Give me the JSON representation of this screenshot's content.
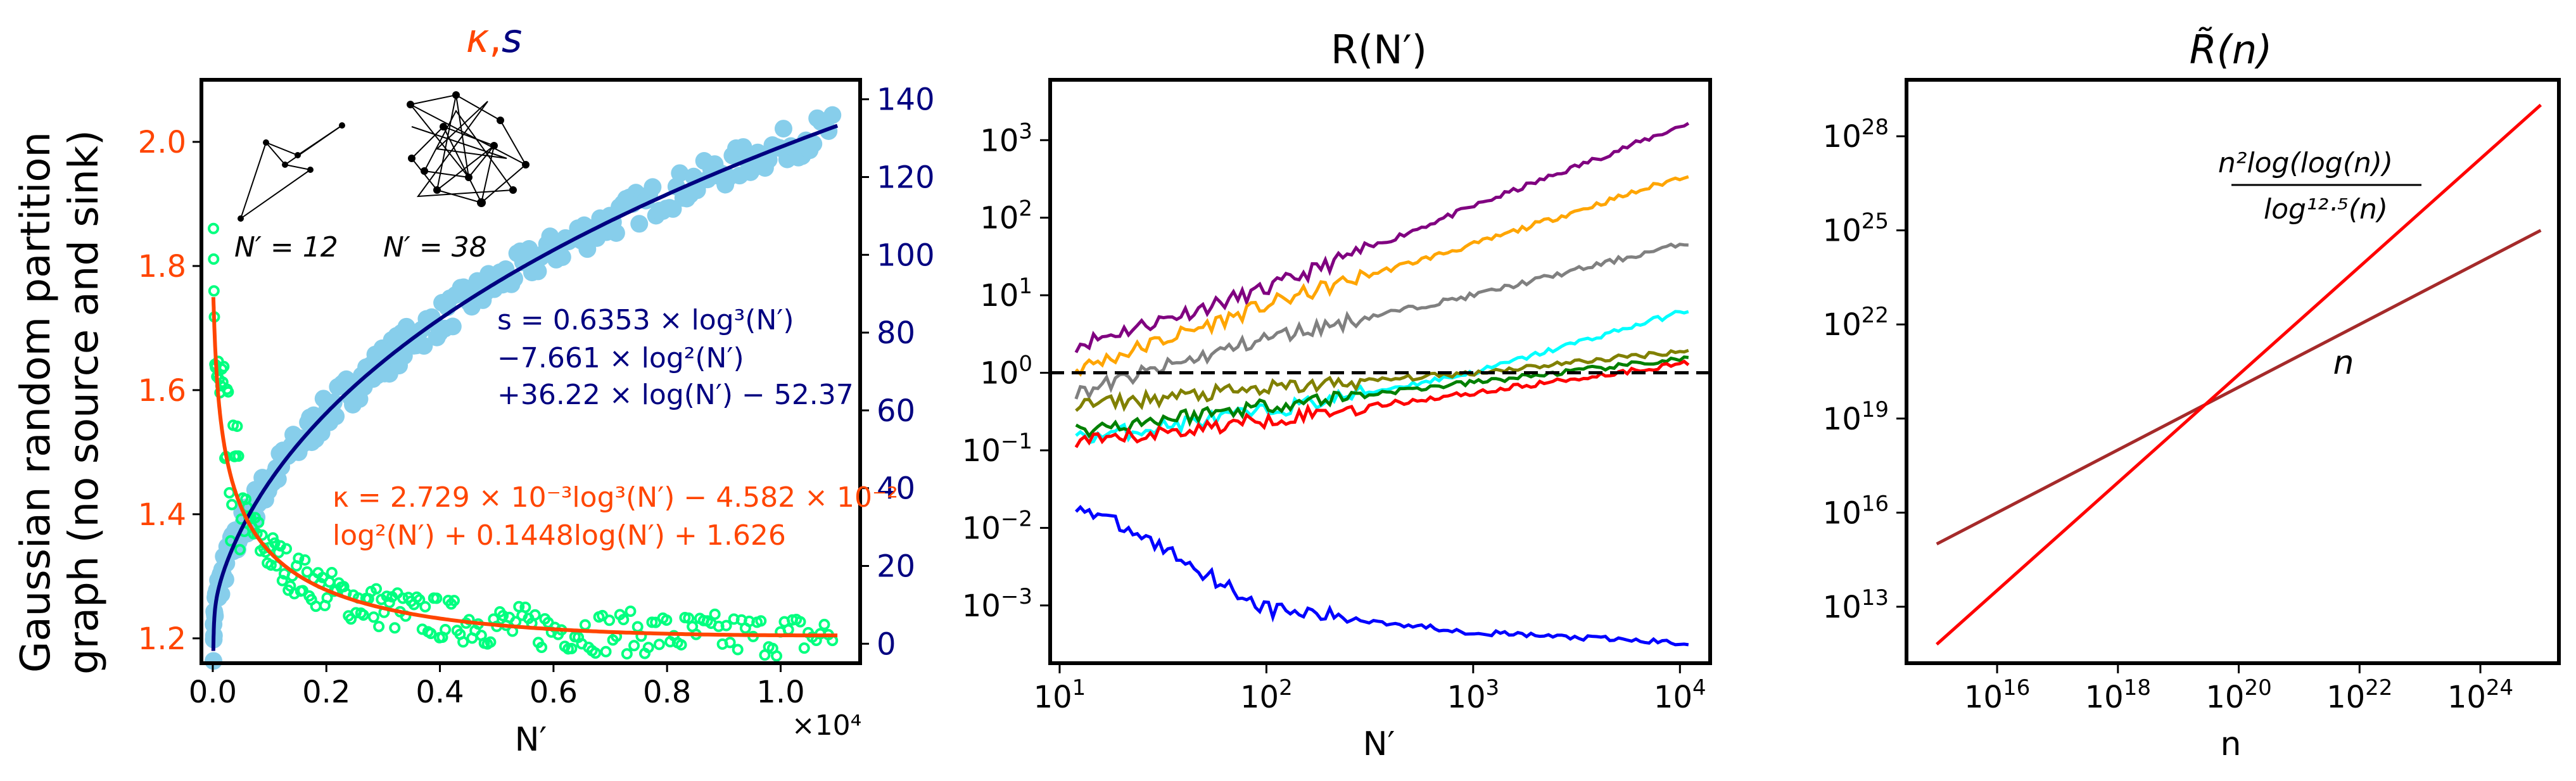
{
  "chart_data": [
    {
      "type": "scatter",
      "panel": "left",
      "title": {
        "kappa": "κ",
        "comma": ",",
        "s": "s"
      },
      "ylabel_lines": [
        "Gaussian random partition",
        "graph (no source and sink)"
      ],
      "xlabel": "N′",
      "x_multiplier": "×10⁴",
      "x_range": [
        -0.2,
        11.4
      ],
      "x_ticks": [
        "0.0",
        "0.2",
        "0.4",
        "0.6",
        "0.8",
        "1.0"
      ],
      "x_tick_values": [
        0,
        2000,
        4000,
        6000,
        8000,
        10000
      ],
      "left_axis": {
        "label": "κ",
        "range": [
          1.16,
          2.1
        ],
        "ticks": [
          "1.2",
          "1.4",
          "1.6",
          "1.8",
          "2.0"
        ],
        "tick_values": [
          1.2,
          1.4,
          1.6,
          1.8,
          2.0
        ]
      },
      "right_axis": {
        "label": "s",
        "range": [
          -5,
          145
        ],
        "ticks": [
          "0",
          "20",
          "40",
          "60",
          "80",
          "100",
          "120",
          "140"
        ],
        "tick_values": [
          0,
          20,
          40,
          60,
          80,
          100,
          120,
          140
        ]
      },
      "kappa_fit": {
        "a": 0.002729,
        "b": -0.04582,
        "c": 0.1448,
        "d": 1.626,
        "x_range": [
          10,
          11000
        ]
      },
      "s_fit": {
        "a": 0.6353,
        "b": -7.661,
        "c": 36.22,
        "d": -52.37,
        "x_range": [
          10,
          11000
        ]
      },
      "annotations": {
        "s_formula": [
          "s = 0.6353 × log³(N′)",
          "−7.661 × log²(N′)",
          "+36.22 × log(N′) − 52.37"
        ],
        "kappa_formula": [
          "κ = 2.729 × 10⁻³log³(N′) − 4.582 × 10⁻²",
          "log²(N′) + 0.1448log(N′) + 1.626"
        ],
        "inset_labels": [
          "N′ = 12",
          "N′ = 38"
        ]
      },
      "colors": {
        "kappa": "#ff4500",
        "s": "#000080",
        "s_points": "#87ceeb",
        "kappa_points": "#00ff7f",
        "left_ticks": "#ff4500",
        "right_ticks": "#000080"
      }
    },
    {
      "type": "line",
      "panel": "middle",
      "scale": "log-log",
      "title": "R(N′)",
      "xlabel": "N′",
      "x_range": [
        9,
        14000
      ],
      "y_range": [
        0.00018,
        6000
      ],
      "x_ticks": [
        {
          "base": "10",
          "exp": "1",
          "value": 10
        },
        {
          "base": "10",
          "exp": "2",
          "value": 100
        },
        {
          "base": "10",
          "exp": "3",
          "value": 1000
        },
        {
          "base": "10",
          "exp": "4",
          "value": 10000
        }
      ],
      "y_ticks": [
        {
          "base": "10",
          "exp": "−3",
          "value": 0.001
        },
        {
          "base": "10",
          "exp": "−2",
          "value": 0.01
        },
        {
          "base": "10",
          "exp": "−1",
          "value": 0.1
        },
        {
          "base": "10",
          "exp": "0",
          "value": 1
        },
        {
          "base": "10",
          "exp": "1",
          "value": 10
        },
        {
          "base": "10",
          "exp": "2",
          "value": 100
        },
        {
          "base": "10",
          "exp": "3",
          "value": 1000
        }
      ],
      "reference_line": {
        "y": 1.0,
        "style": "dashed",
        "color": "#000000"
      },
      "series": [
        {
          "name": "purple",
          "color": "#800080",
          "x": [
            12,
            100,
            1000,
            10000
          ],
          "y": [
            2.3,
            12,
            140,
            1500
          ]
        },
        {
          "name": "orange",
          "color": "#ffa500",
          "x": [
            12,
            100,
            1000,
            10000
          ],
          "y": [
            1.1,
            7.5,
            45,
            330
          ]
        },
        {
          "name": "gray",
          "color": "#808080",
          "x": [
            12,
            100,
            1000,
            10000
          ],
          "y": [
            0.55,
            2.8,
            10,
            45
          ]
        },
        {
          "name": "cyan",
          "color": "#00ffff",
          "x": [
            12,
            100,
            1000,
            10000
          ],
          "y": [
            0.14,
            0.32,
            1.0,
            6.0
          ]
        },
        {
          "name": "olive",
          "color": "#808000",
          "x": [
            12,
            100,
            1000,
            10000
          ],
          "y": [
            0.38,
            0.62,
            1.0,
            1.9
          ]
        },
        {
          "name": "green",
          "color": "#008000",
          "x": [
            12,
            100,
            1000,
            10000
          ],
          "y": [
            0.18,
            0.38,
            0.75,
            1.5
          ]
        },
        {
          "name": "red",
          "color": "#ff0000",
          "x": [
            12,
            100,
            1000,
            10000
          ],
          "y": [
            0.12,
            0.25,
            0.55,
            1.3
          ]
        },
        {
          "name": "blue",
          "color": "#0000ff",
          "x": [
            12,
            30,
            100,
            1000,
            10000
          ],
          "y": [
            0.02,
            0.006,
            0.0009,
            0.00045,
            0.00033
          ]
        }
      ]
    },
    {
      "type": "line",
      "panel": "right",
      "scale": "log-log",
      "title": {
        "symbol": "R̃",
        "arg": "(n)"
      },
      "xlabel": "n",
      "x_log_range": [
        14.5,
        25.3
      ],
      "y_log_range": [
        11.2,
        29.8
      ],
      "x_ticks": [
        {
          "base": "10",
          "exp": "16",
          "value": 16
        },
        {
          "base": "10",
          "exp": "18",
          "value": 18
        },
        {
          "base": "10",
          "exp": "20",
          "value": 20
        },
        {
          "base": "10",
          "exp": "22",
          "value": 22
        },
        {
          "base": "10",
          "exp": "24",
          "value": 24
        }
      ],
      "y_ticks": [
        {
          "base": "10",
          "exp": "13",
          "value": 13
        },
        {
          "base": "10",
          "exp": "16",
          "value": 16
        },
        {
          "base": "10",
          "exp": "19",
          "value": 19
        },
        {
          "base": "10",
          "exp": "22",
          "value": 22
        },
        {
          "base": "10",
          "exp": "25",
          "value": 25
        },
        {
          "base": "10",
          "exp": "28",
          "value": 28
        }
      ],
      "series": [
        {
          "name": "n",
          "label": "n",
          "color": "#a52a2a",
          "log_x": [
            15,
            25
          ],
          "log_y": [
            15,
            25
          ]
        },
        {
          "name": "formula",
          "label_num": "n²log(log(n))",
          "label_den": "log¹²·⁵(n)",
          "color": "#ff0000",
          "log_x": [
            15,
            25
          ],
          "log_y": [
            11.8,
            29.0
          ]
        }
      ]
    }
  ]
}
